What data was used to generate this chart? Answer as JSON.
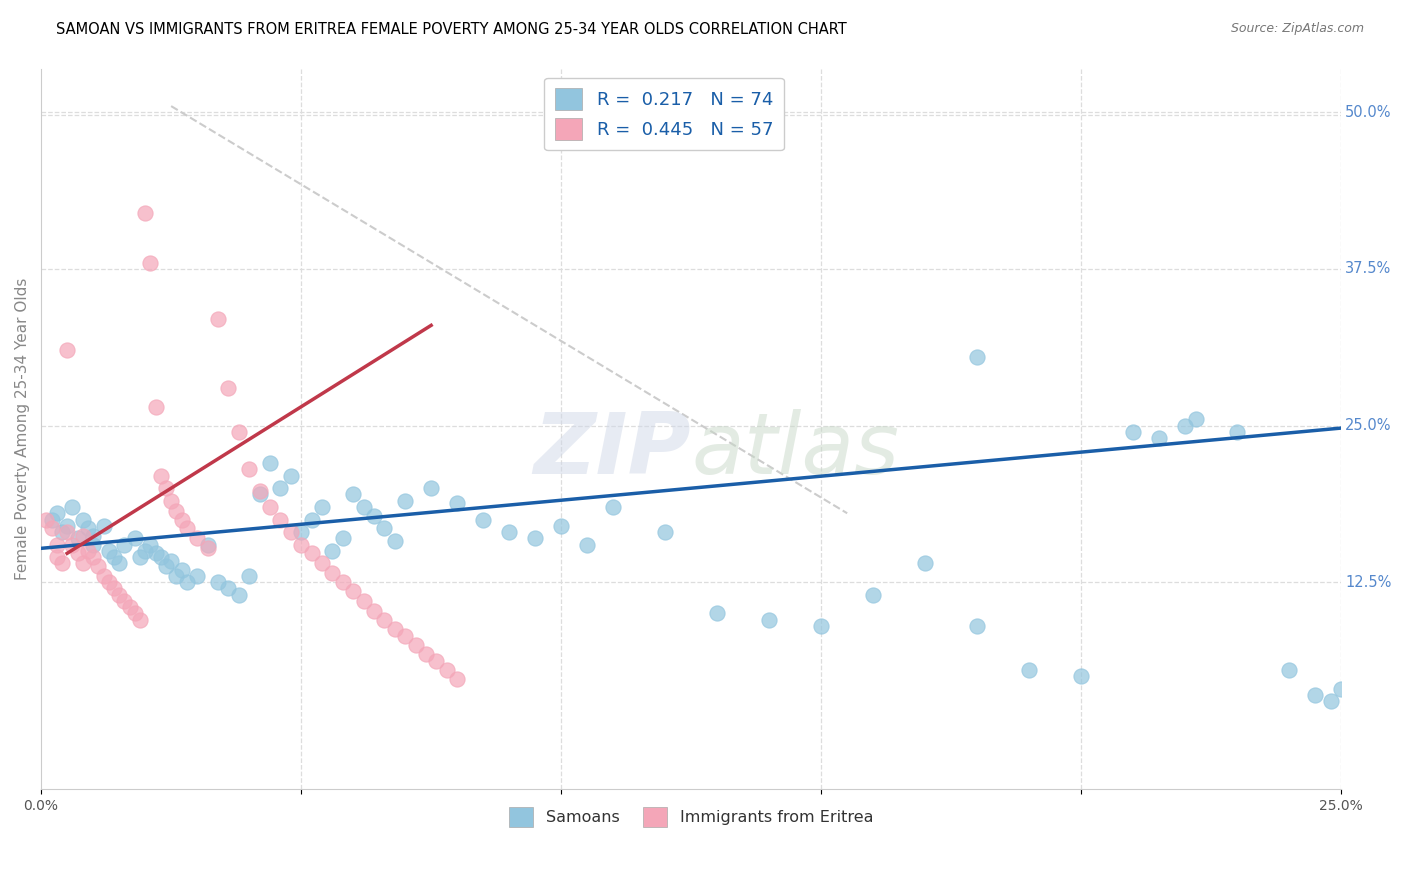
{
  "title": "SAMOAN VS IMMIGRANTS FROM ERITREA FEMALE POVERTY AMONG 25-34 YEAR OLDS CORRELATION CHART",
  "source": "Source: ZipAtlas.com",
  "ylabel": "Female Poverty Among 25-34 Year Olds",
  "yticks": [
    "50.0%",
    "37.5%",
    "25.0%",
    "12.5%"
  ],
  "ytick_vals": [
    0.5,
    0.375,
    0.25,
    0.125
  ],
  "xlim": [
    0.0,
    0.25
  ],
  "ylim": [
    -0.04,
    0.535
  ],
  "legend_label1": "R =  0.217   N = 74",
  "legend_label2": "R =  0.445   N = 57",
  "color_blue": "#92c5de",
  "color_pink": "#f4a6b8",
  "trendline_blue": "#1a5ea8",
  "trendline_pink": "#c0384a",
  "trendline_dashed_color": "#cccccc",
  "background_color": "#ffffff",
  "samoans_x": [
    0.002,
    0.003,
    0.004,
    0.005,
    0.006,
    0.007,
    0.008,
    0.009,
    0.01,
    0.01,
    0.012,
    0.013,
    0.014,
    0.015,
    0.016,
    0.018,
    0.019,
    0.02,
    0.021,
    0.022,
    0.023,
    0.024,
    0.025,
    0.026,
    0.027,
    0.028,
    0.03,
    0.032,
    0.034,
    0.036,
    0.038,
    0.04,
    0.042,
    0.044,
    0.046,
    0.048,
    0.05,
    0.052,
    0.054,
    0.056,
    0.058,
    0.06,
    0.062,
    0.064,
    0.066,
    0.068,
    0.07,
    0.075,
    0.08,
    0.085,
    0.09,
    0.095,
    0.1,
    0.105,
    0.11,
    0.12,
    0.13,
    0.14,
    0.15,
    0.16,
    0.17,
    0.18,
    0.19,
    0.2,
    0.21,
    0.215,
    0.22,
    0.222,
    0.23,
    0.24,
    0.245,
    0.248,
    0.25,
    0.18
  ],
  "samoans_y": [
    0.175,
    0.18,
    0.165,
    0.17,
    0.185,
    0.16,
    0.175,
    0.168,
    0.162,
    0.155,
    0.17,
    0.15,
    0.145,
    0.14,
    0.155,
    0.16,
    0.145,
    0.15,
    0.155,
    0.148,
    0.145,
    0.138,
    0.142,
    0.13,
    0.135,
    0.125,
    0.13,
    0.155,
    0.125,
    0.12,
    0.115,
    0.13,
    0.195,
    0.22,
    0.2,
    0.21,
    0.165,
    0.175,
    0.185,
    0.15,
    0.16,
    0.195,
    0.185,
    0.178,
    0.168,
    0.158,
    0.19,
    0.2,
    0.188,
    0.175,
    0.165,
    0.16,
    0.17,
    0.155,
    0.185,
    0.165,
    0.1,
    0.095,
    0.09,
    0.115,
    0.14,
    0.09,
    0.055,
    0.05,
    0.245,
    0.24,
    0.25,
    0.255,
    0.245,
    0.055,
    0.035,
    0.03,
    0.04,
    0.305
  ],
  "eritrea_x": [
    0.001,
    0.002,
    0.003,
    0.003,
    0.004,
    0.005,
    0.005,
    0.006,
    0.007,
    0.008,
    0.008,
    0.009,
    0.01,
    0.011,
    0.012,
    0.013,
    0.014,
    0.015,
    0.016,
    0.017,
    0.018,
    0.019,
    0.02,
    0.021,
    0.022,
    0.023,
    0.024,
    0.025,
    0.026,
    0.027,
    0.028,
    0.03,
    0.032,
    0.034,
    0.036,
    0.038,
    0.04,
    0.042,
    0.044,
    0.046,
    0.048,
    0.05,
    0.052,
    0.054,
    0.056,
    0.058,
    0.06,
    0.062,
    0.064,
    0.066,
    0.068,
    0.07,
    0.072,
    0.074,
    0.076,
    0.078,
    0.08
  ],
  "eritrea_y": [
    0.175,
    0.168,
    0.155,
    0.145,
    0.14,
    0.31,
    0.165,
    0.155,
    0.148,
    0.162,
    0.14,
    0.15,
    0.145,
    0.138,
    0.13,
    0.125,
    0.12,
    0.115,
    0.11,
    0.105,
    0.1,
    0.095,
    0.42,
    0.38,
    0.265,
    0.21,
    0.2,
    0.19,
    0.182,
    0.175,
    0.168,
    0.16,
    0.152,
    0.335,
    0.28,
    0.245,
    0.215,
    0.198,
    0.185,
    0.175,
    0.165,
    0.155,
    0.148,
    0.14,
    0.132,
    0.125,
    0.118,
    0.11,
    0.102,
    0.095,
    0.088,
    0.082,
    0.075,
    0.068,
    0.062,
    0.055,
    0.048
  ],
  "dashed_line_x": [
    0.025,
    0.155
  ],
  "dashed_line_y": [
    0.505,
    0.18
  ],
  "blue_trendline_x": [
    0.0,
    0.25
  ],
  "blue_trendline_y": [
    0.152,
    0.248
  ],
  "pink_trendline_x": [
    0.005,
    0.075
  ],
  "pink_trendline_y": [
    0.148,
    0.33
  ]
}
